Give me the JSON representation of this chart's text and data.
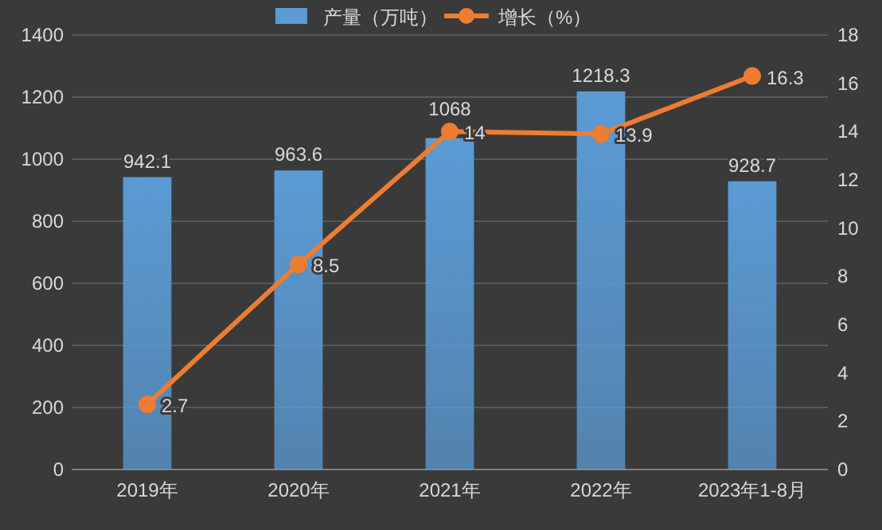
{
  "chart_data": {
    "type": "bar",
    "categories": [
      "2019年",
      "2020年",
      "2021年",
      "2022年",
      "2023年1-8月"
    ],
    "series": [
      {
        "name": "产量（万吨）",
        "color": "#5b9bd5",
        "values": [
          942.1,
          963.6,
          1068,
          1218.3,
          928.7
        ]
      },
      {
        "name": "增长（%）",
        "type": "line",
        "axis": "y2",
        "color": "#ed7d31",
        "values": [
          2.7,
          8.5,
          14,
          13.9,
          16.3
        ]
      }
    ],
    "ylim": [
      0,
      1400
    ],
    "yticks": [
      0,
      200,
      400,
      600,
      800,
      1000,
      1200,
      1400
    ],
    "y2lim": [
      0,
      18
    ],
    "y2ticks": [
      0,
      2,
      4,
      6,
      8,
      10,
      12,
      14,
      16,
      18
    ],
    "grid": "y",
    "legend": "top",
    "marker": "circle",
    "line_style": "solid",
    "data_labels": true
  }
}
